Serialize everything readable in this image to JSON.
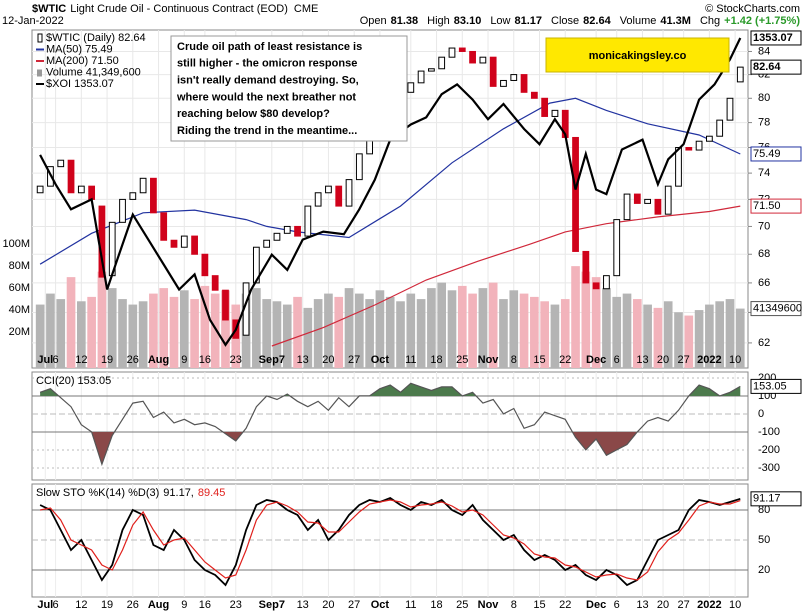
{
  "chart_data": [
    {
      "type": "candlestick",
      "title": "$WTIC",
      "subtitle": "Light Crude Oil - Continuous Contract (EOD)",
      "exchange": "CME",
      "date": "12-Jan-2022",
      "source": "© StockCharts.com",
      "quote": [
        {
          "label": "Open",
          "value": "81.38"
        },
        {
          "label": "High",
          "value": "83.10"
        },
        {
          "label": "Low",
          "value": "81.17"
        },
        {
          "label": "Close",
          "value": "82.64"
        },
        {
          "label": "Volume",
          "value": "41.3M"
        },
        {
          "label": "Chg",
          "value": "+1.42 (+1.75%)"
        }
      ],
      "annotation": [
        "Crude oil path of least resistance is",
        "still higher - the omicron response",
        "isn't really demand destroying. So,",
        "where would the next breather not",
        "reaching below $80 develop?",
        "Riding the trend in the meantime..."
      ],
      "watermark": "monicakingsley.co",
      "xlim": [
        -1,
        137.5
      ],
      "xticks": [
        {
          "value": 1,
          "label": "Jul"
        },
        {
          "value": 3,
          "label": "6"
        },
        {
          "value": 8,
          "label": "12"
        },
        {
          "value": 13,
          "label": "19"
        },
        {
          "value": 18,
          "label": "26"
        },
        {
          "value": 23,
          "label": "Aug"
        },
        {
          "value": 28,
          "label": "9"
        },
        {
          "value": 32,
          "label": "16"
        },
        {
          "value": 38,
          "label": "23"
        },
        {
          "value": 45,
          "label": "Sep7"
        },
        {
          "value": 51,
          "label": "13"
        },
        {
          "value": 56,
          "label": "20"
        },
        {
          "value": 61,
          "label": "27"
        },
        {
          "value": 66,
          "label": "Oct"
        },
        {
          "value": 72,
          "label": "11"
        },
        {
          "value": 77,
          "label": "18"
        },
        {
          "value": 82,
          "label": "25"
        },
        {
          "value": 87,
          "label": "Nov"
        },
        {
          "value": 92,
          "label": "8"
        },
        {
          "value": 97,
          "label": "15"
        },
        {
          "value": 102,
          "label": "22"
        },
        {
          "value": 108,
          "label": "Dec"
        },
        {
          "value": 112,
          "label": "6"
        },
        {
          "value": 117,
          "label": "13"
        },
        {
          "value": 121,
          "label": "20"
        },
        {
          "value": 125,
          "label": "27"
        },
        {
          "value": 130,
          "label": "2022"
        },
        {
          "value": 135,
          "label": "10"
        }
      ],
      "log": true,
      "grid": true,
      "ylim": [
        60.4,
        85.9
      ],
      "yticks": [
        62,
        64,
        66,
        68,
        70,
        72,
        74,
        76,
        78,
        80,
        82,
        84
      ],
      "y2lim": [
        983,
        1362
      ],
      "x": [
        0,
        2,
        4,
        6,
        8,
        10,
        12,
        14,
        16,
        18,
        20,
        22,
        24,
        26,
        28,
        30,
        32,
        34,
        36,
        38,
        40,
        42,
        44,
        46,
        48,
        50,
        52,
        54,
        56,
        58,
        60,
        62,
        64,
        66,
        68,
        70,
        72,
        74,
        76,
        78,
        80,
        82,
        84,
        86,
        88,
        90,
        92,
        94,
        96,
        98,
        100,
        102,
        104,
        106,
        108,
        110,
        112,
        114,
        116,
        118,
        120,
        122,
        124,
        126,
        128,
        130,
        132,
        134,
        136
      ],
      "candles": {
        "name": "$WTIC (Daily) 82.64",
        "up_color": "#000000",
        "down_color": "#d0021b",
        "open": [
          72.5,
          73,
          74.5,
          75,
          72.5,
          73,
          71.5,
          66.5,
          70.3,
          72,
          72.5,
          73.6,
          71,
          69,
          68.5,
          69.3,
          68,
          66.5,
          65.5,
          63.5,
          62.5,
          66,
          68.5,
          69,
          69.5,
          70,
          69.3,
          71.5,
          72.5,
          73,
          71.5,
          73.5,
          75.5,
          77,
          78.5,
          79.5,
          80.5,
          81.3,
          82.3,
          82.5,
          83.5,
          84.3,
          84,
          83,
          83.5,
          81,
          81.5,
          82,
          80.5,
          80,
          78.5,
          79,
          76.8,
          68.2,
          66,
          65.6,
          66.5,
          70.5,
          72.4,
          71.7,
          72,
          70.9,
          73,
          76,
          75.8,
          76.5,
          76.9,
          78.2,
          81.38
        ],
        "close": [
          73,
          74.5,
          75,
          72.5,
          73,
          72,
          66.4,
          70.3,
          72,
          72.5,
          73.6,
          71,
          69,
          68.5,
          69.3,
          68,
          66.5,
          65.5,
          63.5,
          62.3,
          66,
          68.5,
          69,
          69.5,
          70,
          69.3,
          71.5,
          72.5,
          73,
          71.5,
          73.5,
          75.5,
          77,
          78.5,
          79.5,
          80.5,
          81.3,
          82.3,
          82.5,
          83.5,
          84.3,
          84,
          83,
          83.5,
          81,
          81.5,
          82,
          80.5,
          80,
          78.5,
          79,
          76.8,
          68.2,
          66,
          65.6,
          66.5,
          70.5,
          72.4,
          71.7,
          72,
          70.9,
          73,
          76,
          75.8,
          76.5,
          76.9,
          78.2,
          80,
          82.64
        ]
      },
      "volume": {
        "name": "Volume 41,349,600",
        "up_color": "#b4b4b4",
        "down_color": "#f2b3bb",
        "ylim": [
          0,
          295
        ],
        "yticks": [
          {
            "value": 20,
            "label": "20M"
          },
          {
            "value": 40,
            "label": "40M"
          },
          {
            "value": 60,
            "label": "60M"
          },
          {
            "value": 80,
            "label": "80M"
          },
          {
            "value": 100,
            "label": "100M"
          }
        ],
        "last_label": "41349600",
        "values": [
          45,
          55,
          50,
          70,
          48,
          52,
          75,
          60,
          50,
          45,
          48,
          55,
          60,
          52,
          58,
          50,
          62,
          55,
          58,
          45,
          55,
          60,
          50,
          48,
          45,
          52,
          42,
          50,
          55,
          52,
          60,
          55,
          50,
          58,
          52,
          48,
          55,
          50,
          60,
          65,
          58,
          62,
          55,
          60,
          65,
          50,
          58,
          55,
          52,
          48,
          45,
          50,
          80,
          75,
          70,
          60,
          52,
          55,
          50,
          45,
          42,
          48,
          38,
          35,
          40,
          45,
          48,
          50,
          41.3496
        ]
      },
      "series": [
        {
          "name": "MA(50) 75.49",
          "color": "#2233a0",
          "last_label": "75.49",
          "x": [
            0,
            10,
            20,
            30,
            40,
            44,
            50,
            60,
            70,
            80,
            90,
            99,
            104,
            110,
            118,
            128,
            136
          ],
          "values": [
            67.3,
            69.5,
            71.0,
            71.2,
            70.5,
            70.0,
            69.6,
            69.2,
            71.5,
            74.8,
            77.5,
            79.6,
            80.0,
            79.0,
            77.9,
            77.0,
            75.49
          ]
        },
        {
          "name": "MA(200) 71.50",
          "color": "#d0283a",
          "last_label": "71.50",
          "x": [
            45,
            55,
            65,
            75,
            85,
            95,
            102,
            110,
            120,
            130,
            136
          ],
          "values": [
            61.8,
            63.0,
            64.5,
            66.2,
            67.5,
            68.7,
            69.6,
            70.2,
            70.7,
            71.1,
            71.5
          ]
        },
        {
          "name": "$XOI 1353.07",
          "color": "#000000",
          "axis": "y2",
          "last_label": "1353.07",
          "x": [
            0,
            3,
            6,
            10,
            13,
            15,
            18,
            21,
            24,
            27,
            30,
            33,
            36,
            38,
            41,
            45,
            48,
            51,
            55,
            59,
            62,
            65,
            68,
            72,
            75,
            78,
            81,
            84,
            87,
            90,
            94,
            97,
            100,
            102,
            104,
            106,
            108,
            110,
            113,
            117,
            120,
            122,
            125,
            128,
            131,
            134,
            136
          ],
          "values": [
            1222,
            1189,
            1161,
            1172,
            1071,
            1105,
            1155,
            1127,
            1099,
            1071,
            1088,
            1037,
            1009,
            1026,
            1071,
            1110,
            1093,
            1127,
            1136,
            1133,
            1161,
            1194,
            1239,
            1256,
            1264,
            1290,
            1301,
            1284,
            1262,
            1279,
            1251,
            1234,
            1262,
            1245,
            1183,
            1223,
            1183,
            1178,
            1228,
            1239,
            1189,
            1217,
            1234,
            1284,
            1301,
            1329,
            1353.07
          ]
        }
      ]
    },
    {
      "type": "line",
      "title": "CCI(20) 153.05",
      "xlim": [
        -1,
        137.5
      ],
      "x": [
        0,
        2,
        4,
        6,
        8,
        10,
        12,
        14,
        16,
        18,
        20,
        22,
        24,
        26,
        28,
        30,
        32,
        34,
        36,
        38,
        40,
        42,
        44,
        46,
        48,
        50,
        52,
        54,
        56,
        58,
        60,
        62,
        64,
        66,
        68,
        70,
        72,
        74,
        76,
        78,
        80,
        82,
        84,
        86,
        88,
        90,
        92,
        94,
        96,
        98,
        100,
        102,
        104,
        106,
        108,
        110,
        112,
        114,
        116,
        118,
        120,
        122,
        124,
        126,
        128,
        130,
        132,
        134,
        136
      ],
      "ylim": [
        -367,
        233
      ],
      "yticks": [
        200,
        100,
        0,
        -100,
        -200,
        -300
      ],
      "bands": [
        100,
        -100
      ],
      "fill_above_color": "#4c7a4c",
      "fill_below_color": "#8a4848",
      "series": [
        {
          "name": "CCI",
          "color": "#555555",
          "values": [
            120,
            140,
            90,
            40,
            -60,
            -100,
            -280,
            -120,
            -30,
            60,
            70,
            -20,
            10,
            -50,
            -30,
            -60,
            -50,
            -70,
            -110,
            -150,
            -80,
            40,
            100,
            80,
            110,
            70,
            40,
            70,
            20,
            90,
            40,
            100,
            100,
            140,
            160,
            120,
            170,
            150,
            130,
            150,
            150,
            100,
            120,
            60,
            80,
            0,
            30,
            -80,
            -60,
            10,
            -10,
            -30,
            -130,
            -200,
            -140,
            -230,
            -200,
            -170,
            -100,
            -40,
            -20,
            -40,
            20,
            100,
            160,
            140,
            100,
            120,
            153.05
          ]
        }
      ]
    },
    {
      "type": "line",
      "title": "Slow STO %K(14) %D(3)",
      "xlim": [
        -1,
        137.5
      ],
      "x": [
        0,
        2,
        4,
        6,
        8,
        10,
        12,
        14,
        16,
        18,
        20,
        22,
        24,
        26,
        28,
        30,
        32,
        34,
        36,
        38,
        40,
        42,
        44,
        46,
        48,
        50,
        52,
        54,
        56,
        58,
        60,
        62,
        64,
        66,
        68,
        70,
        72,
        74,
        76,
        78,
        80,
        82,
        84,
        86,
        88,
        90,
        92,
        94,
        96,
        98,
        100,
        102,
        104,
        106,
        108,
        110,
        112,
        114,
        116,
        118,
        120,
        122,
        124,
        126,
        128,
        130,
        132,
        134,
        136
      ],
      "ylim": [
        -7,
        106
      ],
      "yticks": [
        20,
        50,
        80
      ],
      "bands": [
        80,
        20
      ],
      "legend_values": [
        "91.17,",
        "89.45"
      ],
      "series": [
        {
          "name": "%K",
          "color": "#000000",
          "values": [
            85,
            80,
            60,
            40,
            50,
            30,
            10,
            25,
            60,
            80,
            75,
            45,
            40,
            60,
            50,
            30,
            20,
            15,
            5,
            25,
            60,
            85,
            90,
            88,
            80,
            75,
            60,
            70,
            50,
            60,
            75,
            85,
            90,
            88,
            92,
            85,
            80,
            88,
            85,
            90,
            80,
            75,
            85,
            70,
            60,
            50,
            55,
            40,
            30,
            35,
            30,
            20,
            25,
            15,
            10,
            20,
            15,
            5,
            10,
            30,
            50,
            55,
            60,
            80,
            90,
            88,
            85,
            88,
            91.17
          ]
        },
        {
          "name": "%D",
          "color": "#e0201c",
          "values": [
            80,
            82,
            70,
            50,
            45,
            40,
            25,
            20,
            40,
            65,
            78,
            60,
            45,
            50,
            52,
            40,
            28,
            20,
            12,
            15,
            40,
            70,
            85,
            88,
            84,
            78,
            68,
            67,
            58,
            58,
            68,
            78,
            86,
            88,
            90,
            88,
            83,
            85,
            86,
            88,
            84,
            78,
            80,
            75,
            65,
            55,
            52,
            46,
            36,
            33,
            32,
            25,
            23,
            18,
            13,
            15,
            16,
            12,
            10,
            18,
            38,
            50,
            57,
            70,
            84,
            88,
            86,
            86,
            89.45
          ]
        }
      ]
    }
  ]
}
